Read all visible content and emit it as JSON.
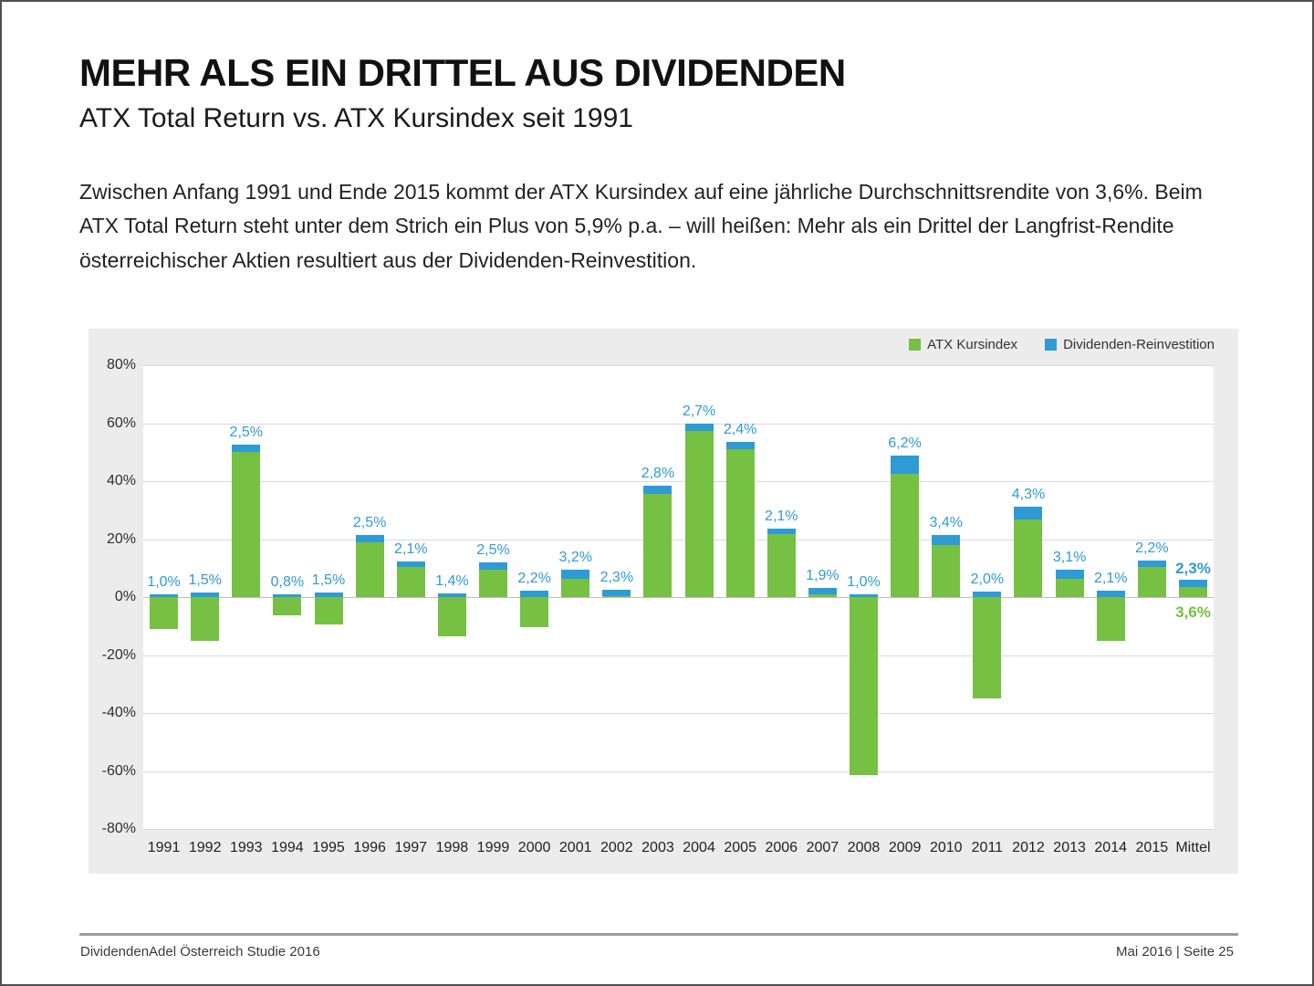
{
  "header": {
    "title": "MEHR ALS EIN DRITTEL AUS DIVIDENDEN",
    "subtitle": "ATX Total Return vs. ATX Kursindex seit 1991",
    "paragraph": "Zwischen Anfang 1991 und Ende 2015 kommt der ATX Kursindex auf eine jährliche Durchschnittsrendite von 3,6%. Beim ATX Total Return steht unter dem Strich ein Plus von 5,9% p.a. – will heißen: Mehr als ein Drittel der Langfrist-Rendite österreichischer Aktien resultiert aus der Dividenden-Reinvestition.",
    "kursindex_avg": "3,6%",
    "totalreturn_avg": "5,9%"
  },
  "chart_data": {
    "type": "bar",
    "stacked": true,
    "grid": true,
    "legend_position": "top-right",
    "legend": [
      "ATX Kursindex",
      "Dividenden-Reinvestition"
    ],
    "ylim": [
      -80,
      80
    ],
    "y_tick_step": 20,
    "y_tick_labels": [
      "80%",
      "60%",
      "40%",
      "20%",
      "0%",
      "-20%",
      "-40%",
      "-60%",
      "-80%"
    ],
    "categories": [
      "1991",
      "1992",
      "1993",
      "1994",
      "1995",
      "1996",
      "1997",
      "1998",
      "1999",
      "2000",
      "2001",
      "2002",
      "2003",
      "2004",
      "2005",
      "2006",
      "2007",
      "2008",
      "2009",
      "2010",
      "2011",
      "2012",
      "2013",
      "2014",
      "2015",
      "Mittel"
    ],
    "series": [
      {
        "name": "ATX Kursindex",
        "color": "#76C043",
        "values": [
          -11.1,
          -15.0,
          50.2,
          -6.4,
          -9.6,
          19.0,
          10.3,
          -13.5,
          9.5,
          -10.5,
          6.3,
          0.2,
          35.7,
          57.3,
          51.0,
          21.6,
          1.1,
          -61.5,
          42.5,
          18.0,
          -34.9,
          26.9,
          6.4,
          -15.0,
          10.4,
          3.6
        ]
      },
      {
        "name": "Dividenden-Reinvestition",
        "color": "#2E9BD5",
        "values": [
          1.0,
          1.5,
          2.5,
          0.8,
          1.5,
          2.5,
          2.1,
          1.4,
          2.5,
          2.2,
          3.2,
          2.3,
          2.8,
          2.7,
          2.4,
          2.1,
          1.9,
          1.0,
          6.2,
          3.4,
          2.0,
          4.3,
          3.1,
          2.1,
          2.2,
          2.3
        ]
      }
    ],
    "bar_labels": [
      "1,0%",
      "1,5%",
      "2,5%",
      "0,8%",
      "1,5%",
      "2,5%",
      "2,1%",
      "1,4%",
      "2,5%",
      "2,2%",
      "3,2%",
      "2,3%",
      "2,8%",
      "2,7%",
      "2,4%",
      "2,1%",
      "1,9%",
      "1,0%",
      "6,2%",
      "3,4%",
      "2,0%",
      "4,3%",
      "3,1%",
      "2,1%",
      "2,2%",
      "2,3%"
    ],
    "mittel_green_label": "3,6%"
  },
  "colors": {
    "green": "#76C043",
    "blue": "#2E9BD5",
    "panel_bg": "#ECECEC",
    "grid": "#DADADA",
    "zero_line": "#BDBDBD"
  },
  "footer": {
    "left": "DividendenAdel Österreich Studie 2016",
    "right": "Mai 2016 | Seite 25"
  }
}
